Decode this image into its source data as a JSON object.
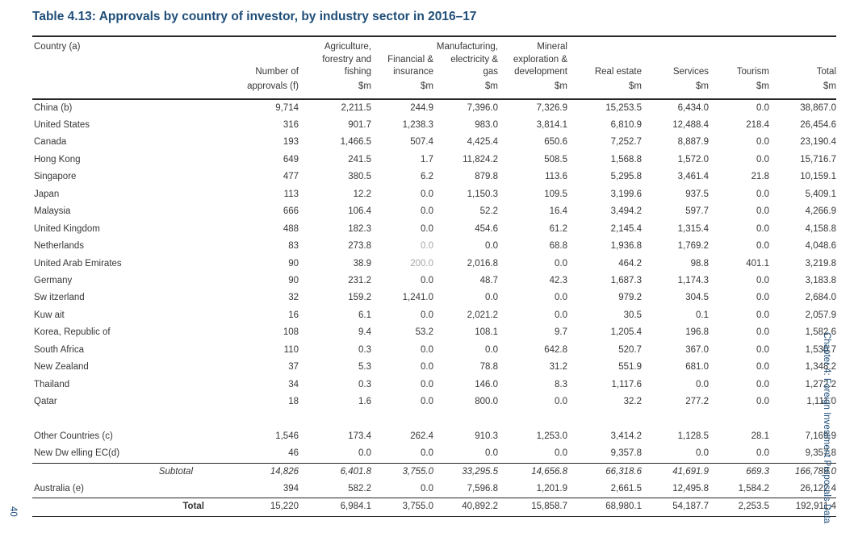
{
  "page": {
    "title": "Table 4.13: Approvals by country of investor, by industry sector in 2016–17",
    "side_tab": "Chapter 4: Foreign Investment Proposals Data",
    "page_number": "40"
  },
  "colors": {
    "accent_blue": "#1F4E79",
    "text": "#373737",
    "muted_value": "#A6A6A6"
  },
  "table": {
    "header": {
      "country_label": "Country (a)",
      "columns": [
        {
          "title": "Number of",
          "unit": "approvals (f)"
        },
        {
          "title": "Agriculture,\nforestry and\nfishing",
          "unit": "$m"
        },
        {
          "title": "Financial &\ninsurance",
          "unit": "$m"
        },
        {
          "title": "Manufacturing,\nelectricity &\ngas",
          "unit": "$m"
        },
        {
          "title": "Mineral\nexploration &\ndevelopment",
          "unit": "$m"
        },
        {
          "title": "Real estate",
          "unit": "$m"
        },
        {
          "title": "Services",
          "unit": "$m"
        },
        {
          "title": "Tourism",
          "unit": "$m"
        },
        {
          "title": "Total",
          "unit": "$m"
        }
      ]
    },
    "rows": [
      {
        "label": "China (b)",
        "values": [
          "9,714",
          "2,211.5",
          "244.9",
          "7,396.0",
          "7,326.9",
          "15,253.5",
          "6,434.0",
          "0.0",
          "38,867.0"
        ]
      },
      {
        "label": "United States",
        "values": [
          "316",
          "901.7",
          "1,238.3",
          "983.0",
          "3,814.1",
          "6,810.9",
          "12,488.4",
          "218.4",
          "26,454.6"
        ]
      },
      {
        "label": "Canada",
        "values": [
          "193",
          "1,466.5",
          "507.4",
          "4,425.4",
          "650.6",
          "7,252.7",
          "8,887.9",
          "0.0",
          "23,190.4"
        ]
      },
      {
        "label": "Hong Kong",
        "values": [
          "649",
          "241.5",
          "1.7",
          "11,824.2",
          "508.5",
          "1,568.8",
          "1,572.0",
          "0.0",
          "15,716.7"
        ]
      },
      {
        "label": "Singapore",
        "values": [
          "477",
          "380.5",
          "6.2",
          "879.8",
          "113.6",
          "5,295.8",
          "3,461.4",
          "21.8",
          "10,159.1"
        ]
      },
      {
        "label": "Japan",
        "values": [
          "113",
          "12.2",
          "0.0",
          "1,150.3",
          "109.5",
          "3,199.6",
          "937.5",
          "0.0",
          "5,409.1"
        ]
      },
      {
        "label": "Malaysia",
        "values": [
          "666",
          "106.4",
          "0.0",
          "52.2",
          "16.4",
          "3,494.2",
          "597.7",
          "0.0",
          "4,266.9"
        ]
      },
      {
        "label": "United Kingdom",
        "values": [
          "488",
          "182.3",
          "0.0",
          "454.6",
          "61.2",
          "2,145.4",
          "1,315.4",
          "0.0",
          "4,158.8"
        ]
      },
      {
        "label": "Netherlands",
        "values": [
          "83",
          "273.8",
          "0.0",
          "0.0",
          "68.8",
          "1,936.8",
          "1,769.2",
          "0.0",
          "4,048.6"
        ],
        "muted": [
          2
        ]
      },
      {
        "label": "United Arab Emirates",
        "values": [
          "90",
          "38.9",
          "200.0",
          "2,016.8",
          "0.0",
          "464.2",
          "98.8",
          "401.1",
          "3,219.8"
        ],
        "muted": [
          2
        ]
      },
      {
        "label": "Germany",
        "values": [
          "90",
          "231.2",
          "0.0",
          "48.7",
          "42.3",
          "1,687.3",
          "1,174.3",
          "0.0",
          "3,183.8"
        ]
      },
      {
        "label": "Sw itzerland",
        "values": [
          "32",
          "159.2",
          "1,241.0",
          "0.0",
          "0.0",
          "979.2",
          "304.5",
          "0.0",
          "2,684.0"
        ]
      },
      {
        "label": "Kuw ait",
        "values": [
          "16",
          "6.1",
          "0.0",
          "2,021.2",
          "0.0",
          "30.5",
          "0.1",
          "0.0",
          "2,057.9"
        ]
      },
      {
        "label": "Korea, Republic of",
        "values": [
          "108",
          "9.4",
          "53.2",
          "108.1",
          "9.7",
          "1,205.4",
          "196.8",
          "0.0",
          "1,582.6"
        ]
      },
      {
        "label": "South Africa",
        "values": [
          "110",
          "0.3",
          "0.0",
          "0.0",
          "642.8",
          "520.7",
          "367.0",
          "0.0",
          "1,530.7"
        ]
      },
      {
        "label": "New  Zealand",
        "values": [
          "37",
          "5.3",
          "0.0",
          "78.8",
          "31.2",
          "551.9",
          "681.0",
          "0.0",
          "1,348.2"
        ]
      },
      {
        "label": "Thailand",
        "values": [
          "34",
          "0.3",
          "0.0",
          "146.0",
          "8.3",
          "1,117.6",
          "0.0",
          "0.0",
          "1,272.2"
        ]
      },
      {
        "label": "Qatar",
        "values": [
          "18",
          "1.6",
          "0.0",
          "800.0",
          "0.0",
          "32.2",
          "277.2",
          "0.0",
          "1,111.0"
        ]
      },
      {
        "type": "spacer"
      },
      {
        "label": "Other Countries (c)",
        "values": [
          "1,546",
          "173.4",
          "262.4",
          "910.3",
          "1,253.0",
          "3,414.2",
          "1,128.5",
          "28.1",
          "7,169.9"
        ]
      },
      {
        "label": "New  Dw elling EC(d)",
        "values": [
          "46",
          "0.0",
          "0.0",
          "0.0",
          "0.0",
          "9,357.8",
          "0.0",
          "0.0",
          "9,357.8"
        ]
      },
      {
        "type": "subtotal",
        "label": "Subtotal",
        "values": [
          "14,826",
          "6,401.8",
          "3,755.0",
          "33,295.5",
          "14,656.8",
          "66,318.6",
          "41,691.9",
          "669.3",
          "166,789.0"
        ]
      },
      {
        "label": "Australia (e)",
        "values": [
          "394",
          "582.2",
          "0.0",
          "7,596.8",
          "1,201.9",
          "2,661.5",
          "12,495.8",
          "1,584.2",
          "26,122.4"
        ]
      },
      {
        "type": "total",
        "label": "Total",
        "values": [
          "15,220",
          "6,984.1",
          "3,755.0",
          "40,892.2",
          "15,858.7",
          "68,980.1",
          "54,187.7",
          "2,253.5",
          "192,911.4"
        ]
      }
    ]
  }
}
